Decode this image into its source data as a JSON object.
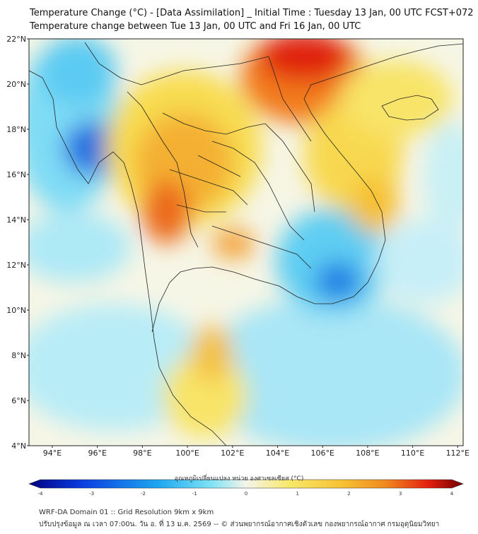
{
  "title_line1": "Temperature Change (°C) - [Data Assimilation] _ Initial Time : Tuesday 13 Jan, 00 UTC FCST+072",
  "title_line2": "Temperature change between Tue 13 Jan, 00 UTC and Fri 16 Jan, 00 UTC",
  "lat_labels": [
    "22°N",
    "20°N",
    "18°N",
    "16°N",
    "14°N",
    "12°N",
    "10°N",
    "8°N",
    "6°N",
    "4°N"
  ],
  "lon_labels": [
    "94°E",
    "96°E",
    "98°E",
    "100°E",
    "102°E",
    "104°E",
    "106°E",
    "108°E",
    "110°E",
    "112°E"
  ],
  "colorbar": {
    "label": "อุณหภูมิเปลี่ยนแปลง หน่วย องศาเซลเซียส (°C)",
    "ticks": [
      "-4",
      "-3",
      "-2",
      "-1",
      "0",
      "1",
      "2",
      "3",
      "4"
    ],
    "min": -4,
    "max": 4
  },
  "footer_line1": "WRF-DA Domain 01 :: Grid Resolution 9km x 9km",
  "footer_line2": "ปรับปรุงข้อมูล ณ เวลา 07:00น. วัน อ. ที่ 13 ม.ค. 2569 -- © ส่วนพยากรณ์อากาศเชิงตัวเลข กองพยากรณ์อากาศ กรมอุตุนิยมวิทยา",
  "colors": {
    "neg_strong": "#0a55d8",
    "neg": "#3fc8f0",
    "neutral": "#f4f4ea",
    "pos": "#f8e043",
    "pos_mid": "#f5a623",
    "pos_strong": "#e42010",
    "border": "#222222"
  }
}
